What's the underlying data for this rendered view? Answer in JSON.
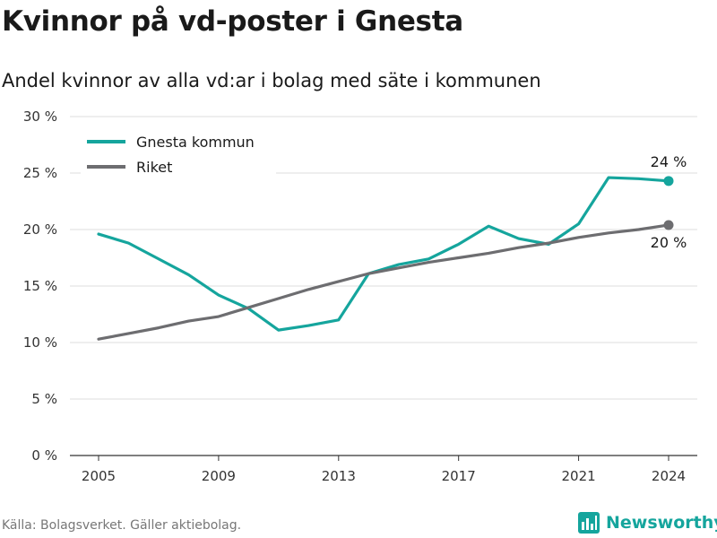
{
  "title": "Kvinnor på vd-poster i Gnesta",
  "subtitle": "Andel kvinnor av alla vd:ar i bolag med säte i kommunen",
  "source": "Källa: Bolagsverket. Gäller aktiebolag.",
  "brand": {
    "name": "Newsworthy",
    "icon": "newsworthy-logo-icon"
  },
  "colors": {
    "gnesta": "#15a59d",
    "riket": "#6d6d70",
    "grid": "#dddddd",
    "axis": "#333333"
  },
  "chart_data": {
    "type": "line",
    "x": [
      2005,
      2006,
      2007,
      2008,
      2009,
      2010,
      2011,
      2012,
      2013,
      2014,
      2015,
      2016,
      2017,
      2018,
      2019,
      2020,
      2021,
      2022,
      2023,
      2024
    ],
    "xticks": [
      2005,
      2009,
      2013,
      2017,
      2021,
      2024
    ],
    "yticks": [
      0,
      5,
      10,
      15,
      20,
      25,
      30
    ],
    "ytick_labels": [
      "0 %",
      "5 %",
      "10 %",
      "15 %",
      "20 %",
      "25 %",
      "30 %"
    ],
    "ylim": [
      0,
      30
    ],
    "grid": true,
    "legend_position": "top-left",
    "series": [
      {
        "name": "Gnesta kommun",
        "color": "#15a59d",
        "values": [
          19.6,
          18.8,
          17.4,
          16.0,
          14.2,
          13.0,
          11.1,
          11.5,
          12.0,
          16.1,
          16.9,
          17.4,
          18.7,
          20.3,
          19.2,
          18.7,
          20.5,
          24.6,
          24.5,
          24.3
        ],
        "end_label": "24 %"
      },
      {
        "name": "Riket",
        "color": "#6d6d70",
        "values": [
          10.3,
          10.8,
          11.3,
          11.9,
          12.3,
          13.1,
          13.9,
          14.7,
          15.4,
          16.1,
          16.6,
          17.1,
          17.5,
          17.9,
          18.4,
          18.8,
          19.3,
          19.7,
          20.0,
          20.4
        ],
        "end_label": "20 %"
      }
    ]
  }
}
